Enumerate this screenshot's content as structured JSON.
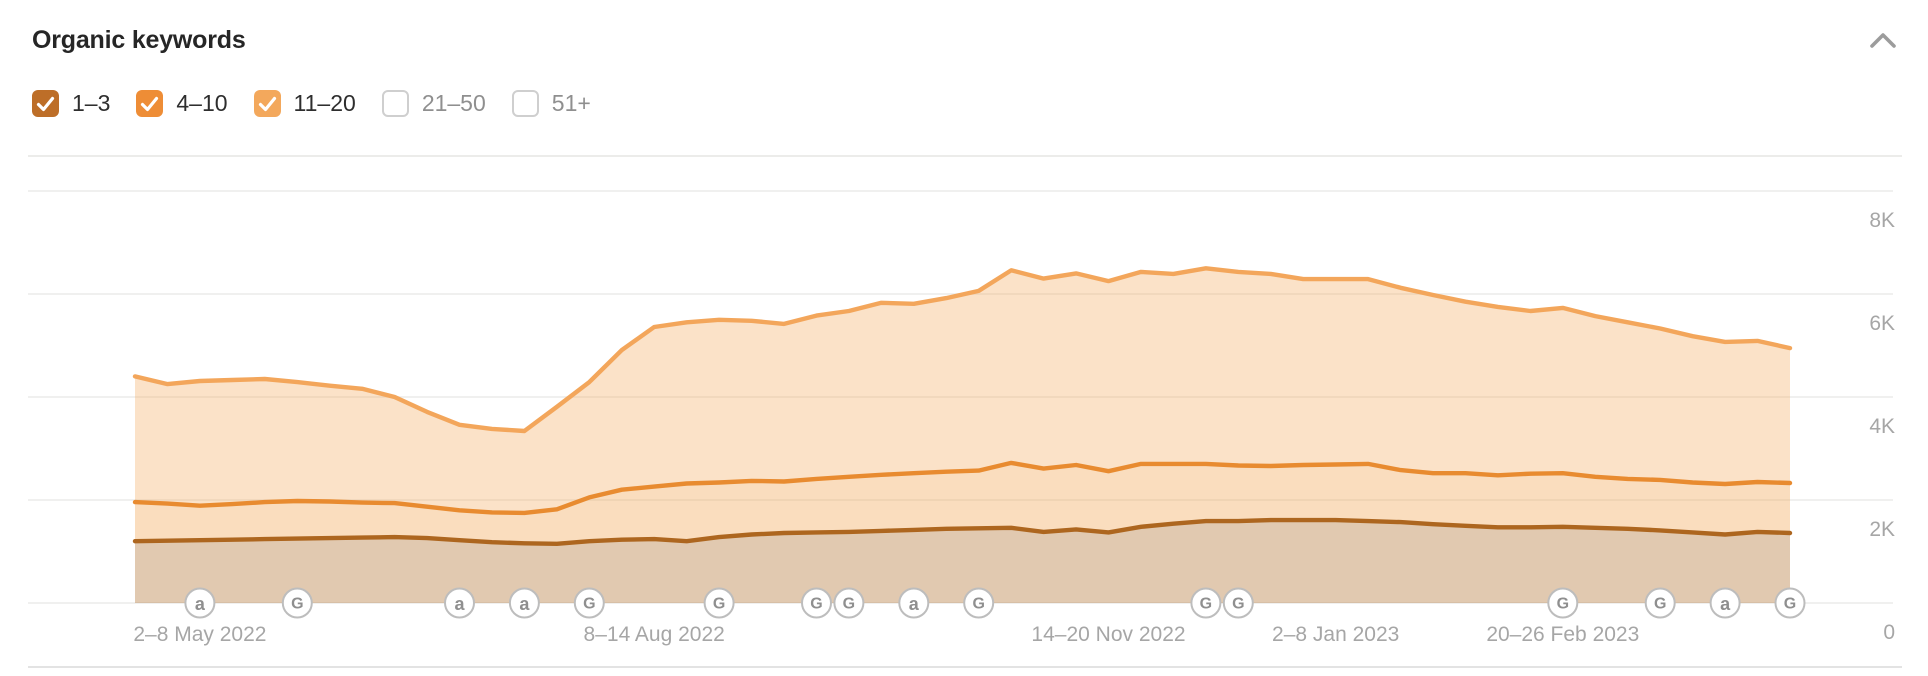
{
  "header": {
    "title": "Organic keywords",
    "collapse_icon": "chevron-up",
    "chevron_color": "#9c9c9c"
  },
  "legend": {
    "items": [
      {
        "label": "1–3",
        "checked": true,
        "color": "#bd6e28"
      },
      {
        "label": "4–10",
        "checked": true,
        "color": "#ee8d36"
      },
      {
        "label": "11–20",
        "checked": true,
        "color": "#f3a85c"
      },
      {
        "label": "21–50",
        "checked": false,
        "color": null
      },
      {
        "label": "51+",
        "checked": false,
        "color": null
      }
    ]
  },
  "chart_data": {
    "type": "area",
    "stacked": true,
    "title": "Organic keywords by position range, weekly",
    "ylim": [
      0,
      8700
    ],
    "grid": "horizontal",
    "legend_position": "top-left-as-checkboxes",
    "y_ticks": [
      {
        "value": 0,
        "label": "0"
      },
      {
        "value": 2000,
        "label": "2K"
      },
      {
        "value": 4000,
        "label": "4K"
      },
      {
        "value": 6000,
        "label": "6K"
      },
      {
        "value": 8000,
        "label": "8K"
      }
    ],
    "x_ticks": [
      {
        "week": 2,
        "label": "2–8 May 2022"
      },
      {
        "week": 16,
        "label": "8–14 Aug 2022"
      },
      {
        "week": 30,
        "label": "14–20 Nov 2022"
      },
      {
        "week": 37,
        "label": "2–8 Jan 2023"
      },
      {
        "week": 44,
        "label": "20–26 Feb 2023"
      }
    ],
    "series": [
      {
        "name": "1–3",
        "line_color": "#ad661f",
        "fill_color": "rgba(169,101,29,0.35)",
        "values": [
          1200,
          1210,
          1220,
          1230,
          1240,
          1250,
          1260,
          1270,
          1280,
          1260,
          1220,
          1180,
          1160,
          1150,
          1200,
          1230,
          1240,
          1200,
          1280,
          1330,
          1360,
          1370,
          1380,
          1400,
          1420,
          1440,
          1450,
          1460,
          1380,
          1430,
          1370,
          1480,
          1540,
          1590,
          1590,
          1610,
          1610,
          1610,
          1590,
          1570,
          1530,
          1500,
          1470,
          1470,
          1480,
          1460,
          1440,
          1410,
          1370,
          1330,
          1380,
          1360
        ]
      },
      {
        "name": "4–10",
        "line_color": "#e88b30",
        "fill_color": "rgba(242,160,75,0.36)",
        "values": [
          760,
          720,
          670,
          690,
          720,
          730,
          710,
          680,
          660,
          610,
          580,
          580,
          590,
          670,
          850,
          970,
          1020,
          1120,
          1060,
          1040,
          1000,
          1040,
          1070,
          1090,
          1100,
          1110,
          1120,
          1260,
          1230,
          1250,
          1190,
          1220,
          1160,
          1110,
          1080,
          1050,
          1070,
          1080,
          1110,
          1010,
          990,
          1020,
          1010,
          1040,
          1040,
          990,
          970,
          980,
          970,
          980,
          970,
          970
        ]
      },
      {
        "name": "11–20",
        "line_color": "#f3a65b",
        "fill_color": "rgba(244,167,89,0.33)",
        "values": [
          2440,
          2320,
          2420,
          2410,
          2390,
          2310,
          2250,
          2210,
          2060,
          1840,
          1660,
          1620,
          1590,
          1990,
          2240,
          2710,
          3100,
          3130,
          3160,
          3110,
          3060,
          3170,
          3220,
          3340,
          3290,
          3370,
          3490,
          3740,
          3690,
          3720,
          3690,
          3730,
          3690,
          3800,
          3760,
          3730,
          3610,
          3600,
          3590,
          3540,
          3460,
          3330,
          3270,
          3160,
          3210,
          3120,
          3040,
          2940,
          2840,
          2760,
          2740,
          2620
        ]
      }
    ],
    "events": [
      {
        "week": 2,
        "icon": "a"
      },
      {
        "week": 5,
        "icon": "G"
      },
      {
        "week": 10,
        "icon": "a"
      },
      {
        "week": 12,
        "icon": "a"
      },
      {
        "week": 14,
        "icon": "G"
      },
      {
        "week": 18,
        "icon": "G"
      },
      {
        "week": 21,
        "icon": "G"
      },
      {
        "week": 22,
        "icon": "G"
      },
      {
        "week": 24,
        "icon": "a"
      },
      {
        "week": 26,
        "icon": "G"
      },
      {
        "week": 33,
        "icon": "G"
      },
      {
        "week": 34,
        "icon": "G"
      },
      {
        "week": 44,
        "icon": "G"
      },
      {
        "week": 47,
        "icon": "G"
      },
      {
        "week": 49,
        "icon": "a"
      },
      {
        "week": 51,
        "icon": "G"
      }
    ],
    "event_icon_style": {
      "circle_fill": "#ffffff",
      "circle_border": "#bdbdbd",
      "letter_color": "#8f8f8f"
    },
    "axis_label_color": "#a6a6a6",
    "gridline_color": "#ececea"
  }
}
